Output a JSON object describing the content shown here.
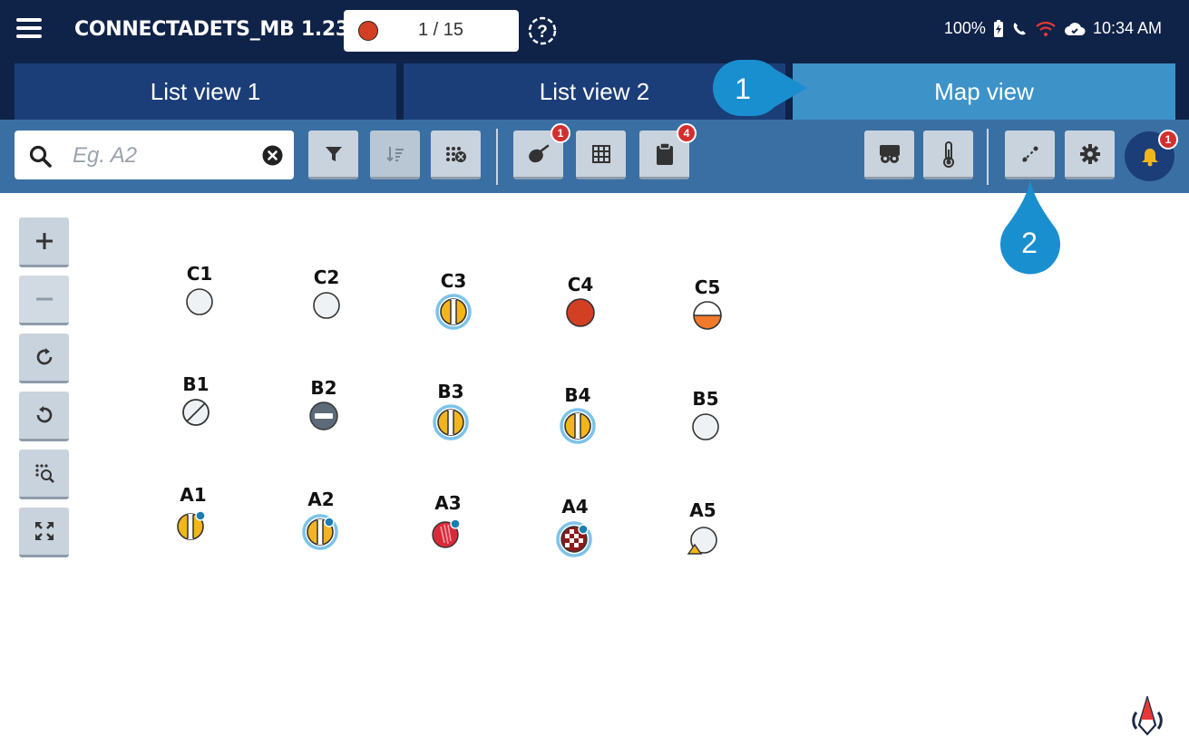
{
  "header": {
    "app_title": "CONNECTADETS_MB 1.23",
    "counter": "1 / 15",
    "status": {
      "battery": "100%",
      "time": "10:34 AM"
    }
  },
  "tabs": [
    {
      "label": "List view 1",
      "active": false
    },
    {
      "label": "List view 2",
      "active": false
    },
    {
      "label": "Map view",
      "active": true
    }
  ],
  "callouts": {
    "one": "1",
    "two": "2"
  },
  "toolbar": {
    "search_placeholder": "Eg. A2",
    "badge_1": "1",
    "badge_4": "4",
    "bell_badge": "1"
  },
  "map": {
    "rows": [
      {
        "cells": [
          {
            "label": "C1",
            "state": "empty"
          },
          {
            "label": "C2",
            "state": "empty"
          },
          {
            "label": "C3",
            "state": "striped-selected"
          },
          {
            "label": "C4",
            "state": "red-filled"
          },
          {
            "label": "C5",
            "state": "half-orange"
          }
        ]
      },
      {
        "cells": [
          {
            "label": "B1",
            "state": "slashed"
          },
          {
            "label": "B2",
            "state": "minus"
          },
          {
            "label": "B3",
            "state": "striped-selected"
          },
          {
            "label": "B4",
            "state": "striped-selected"
          },
          {
            "label": "B5",
            "state": "empty"
          }
        ]
      },
      {
        "cells": [
          {
            "label": "A1",
            "state": "striped-dot"
          },
          {
            "label": "A2",
            "state": "striped-selected-dot"
          },
          {
            "label": "A3",
            "state": "red-hatched-dot"
          },
          {
            "label": "A4",
            "state": "checkered-selected-dot"
          },
          {
            "label": "A5",
            "state": "empty-triangle"
          }
        ]
      }
    ]
  },
  "colors": {
    "header_bg": "#0f2247",
    "tab_bg": "#1c3e78",
    "tab_active_bg": "#3d92c8",
    "toolbar_bg": "#3a6fa3",
    "callout": "#1a8fd0",
    "badge": "#d32f2f",
    "accent_red": "#d33f23",
    "stripe_yellow": "#f2b51c"
  }
}
